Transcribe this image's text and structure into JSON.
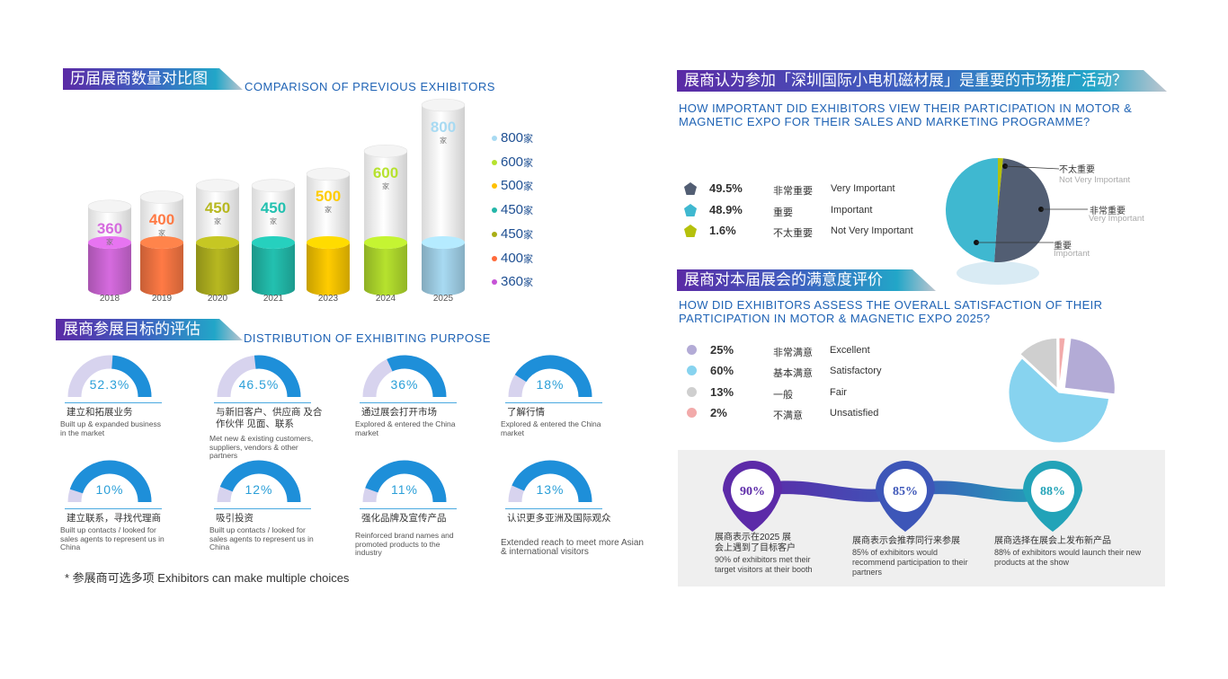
{
  "chart_data": [
    {
      "type": "bar",
      "title": "历届展商数量对比图",
      "subtitle": "COMPARISON OF PREVIOUS EXHIBITORS",
      "categories": [
        "2018",
        "2019",
        "2020",
        "2021",
        "2023",
        "2024",
        "2025"
      ],
      "values": [
        360,
        400,
        450,
        450,
        500,
        600,
        800
      ],
      "value_labels": [
        "360",
        "400",
        "450",
        "450",
        "500",
        "600",
        "800"
      ],
      "unit": "家",
      "colors": [
        "#d66bdf",
        "#ff7a45",
        "#b7b820",
        "#23c1b0",
        "#ffcc00",
        "#b6e22e",
        "#a8daf2"
      ],
      "legend": [
        {
          "label": "800",
          "unit": "家",
          "color": "#a8daf2"
        },
        {
          "label": "600",
          "unit": "家",
          "color": "#b6e22e"
        },
        {
          "label": "500",
          "unit": "家",
          "color": "#ffc000"
        },
        {
          "label": "450",
          "unit": "家",
          "color": "#23b6a8"
        },
        {
          "label": "450",
          "unit": "家",
          "color": "#a9ae15"
        },
        {
          "label": "400",
          "unit": "家",
          "color": "#ff6a3a"
        },
        {
          "label": "360",
          "unit": "家",
          "color": "#c653d6"
        }
      ]
    },
    {
      "type": "pie",
      "title": "展商认为参加「深圳国际小电机磁材展」是重要的市场推广活动？",
      "subtitle": "HOW IMPORTANT DID EXHIBITORS VIEW THEIR PARTICIPATION IN MOTOR & MAGNETIC EXPO FOR THEIR SALES AND MARKETING PROGRAMME?",
      "slices": [
        {
          "pct_label": "49.5%",
          "value": 49.5,
          "cn": "非常重要",
          "en": "Very Important",
          "color": "#525e73"
        },
        {
          "pct_label": "48.9%",
          "value": 48.9,
          "cn": "重要",
          "en": "Important",
          "color": "#3fb8d0"
        },
        {
          "pct_label": "1.6%",
          "value": 1.6,
          "cn": "不太重要",
          "en": "Not Very Important",
          "color": "#b5c10c"
        }
      ],
      "callouts": [
        {
          "cn": "不太重要",
          "en": "Not Very Important"
        },
        {
          "cn": "非常重要",
          "en": "Very Important"
        },
        {
          "cn": "重要",
          "en": "Important"
        }
      ]
    },
    {
      "type": "pie",
      "title": "展商对本届展会的满意度评价",
      "subtitle": "HOW DID EXHIBITORS ASSESS THE OVERALL SATISFACTION OF THEIR PARTICIPATION IN MOTOR & MAGNETIC EXPO 2025?",
      "slices": [
        {
          "pct_label": "25%",
          "value": 25,
          "cn": "非常满意",
          "en": "Excellent",
          "color": "#b3abd6"
        },
        {
          "pct_label": "60%",
          "value": 60,
          "cn": "基本满意",
          "en": "Satisfactory",
          "color": "#87d3ef"
        },
        {
          "pct_label": "13%",
          "value": 13,
          "cn": "一般",
          "en": "Fair",
          "color": "#cfcfcf"
        },
        {
          "pct_label": "2%",
          "value": 2,
          "cn": "不满意",
          "en": "Unsatisfied",
          "color": "#f2aaaa"
        }
      ]
    },
    {
      "type": "table",
      "title": "展商参展目标的评估",
      "subtitle": "DISTRIBUTION OF EXHIBITING PURPOSE",
      "items": [
        {
          "label": "52.3%",
          "value": 52.3,
          "cn": "建立和拓展业务",
          "en": "Built up & expanded business in the market"
        },
        {
          "label": "46.5%",
          "value": 46.5,
          "cn": "与新旧客户、供应商 及合作伙伴 见面、联系",
          "en": "Met new & existing customers, suppliers, vendors & other partners"
        },
        {
          "label": "36%",
          "value": 36,
          "cn": "通过展会打开市场",
          "en": "Explored & entered the China market"
        },
        {
          "label": "18%",
          "value": 18,
          "cn": "了解行情",
          "en": "Explored & entered the China market"
        },
        {
          "label": "10%",
          "value": 10,
          "cn": "建立联系，寻找代理商",
          "en": "Built up contacts / looked for sales agents to represent  us in China"
        },
        {
          "label": "12%",
          "value": 12,
          "cn": "吸引投资",
          "en": "Built up contacts / looked for sales agents to represent  us in China"
        },
        {
          "label": "11%",
          "value": 11,
          "cn": "强化品牌及宣传产品",
          "en": "Reinforced brand names and promoted products to the industry"
        },
        {
          "label": "13%",
          "value": 13,
          "cn": "认识更多亚洲及国际观众",
          "en": "Extended reach to meet more Asian & international visitors"
        }
      ],
      "footnote": "*  参展商可选多项 Exhibitors can make multiple choices"
    }
  ],
  "stats": [
    {
      "label": "90%",
      "value": 90,
      "cn": "展商表示在2025 展会上遇到了目标客户",
      "en": "90% of exhibitors met their target visitors at their booth",
      "color": "#5c2aa8"
    },
    {
      "label": "85%",
      "value": 85,
      "cn": "展商表示会推荐同行来参展",
      "en": "85% of exhibitors would recommend participation to their partners",
      "color": "#3d56b8"
    },
    {
      "label": "88%",
      "value": 88,
      "cn": "展商选择在展会上发布新产品",
      "en": "88% of exhibitors would launch their new products at the show",
      "color": "#22a3b8"
    }
  ],
  "colors": {
    "accent": "#1f63b5",
    "gauge_track": "#d7d3ee",
    "gauge_fill": "#1e8fd9",
    "panel": "#efefef"
  }
}
